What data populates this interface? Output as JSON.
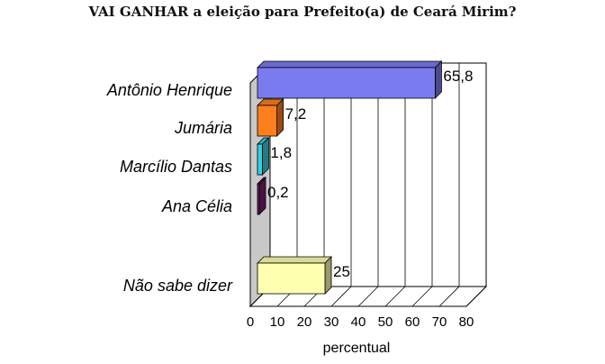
{
  "title": "VAI GANHAR a eleição para Prefeito(a) de Ceará Mirim?",
  "chart_data": {
    "type": "bar",
    "orientation": "horizontal",
    "title": "VAI GANHAR a eleição para Prefeito(a) de Ceará Mirim?",
    "xlabel": "percentual",
    "ylabel": "",
    "xlim": [
      0,
      80
    ],
    "xticks": [
      "0",
      "10",
      "20",
      "30",
      "40",
      "50",
      "60",
      "70",
      "80"
    ],
    "grid": true,
    "categories": [
      "Antônio Henrique",
      "Jumária",
      "Marcílio Dantas",
      "Ana Célia",
      "Não sabe dizer"
    ],
    "values": [
      65.8,
      7.2,
      1.8,
      0.2,
      25
    ],
    "value_labels": [
      "65,8",
      "7,2",
      "1,8",
      "0,2",
      "25"
    ],
    "colors": [
      "#7b7bf0",
      "#ff7f1e",
      "#33d0e0",
      "#7a1f6e",
      "#ffffb0"
    ]
  }
}
